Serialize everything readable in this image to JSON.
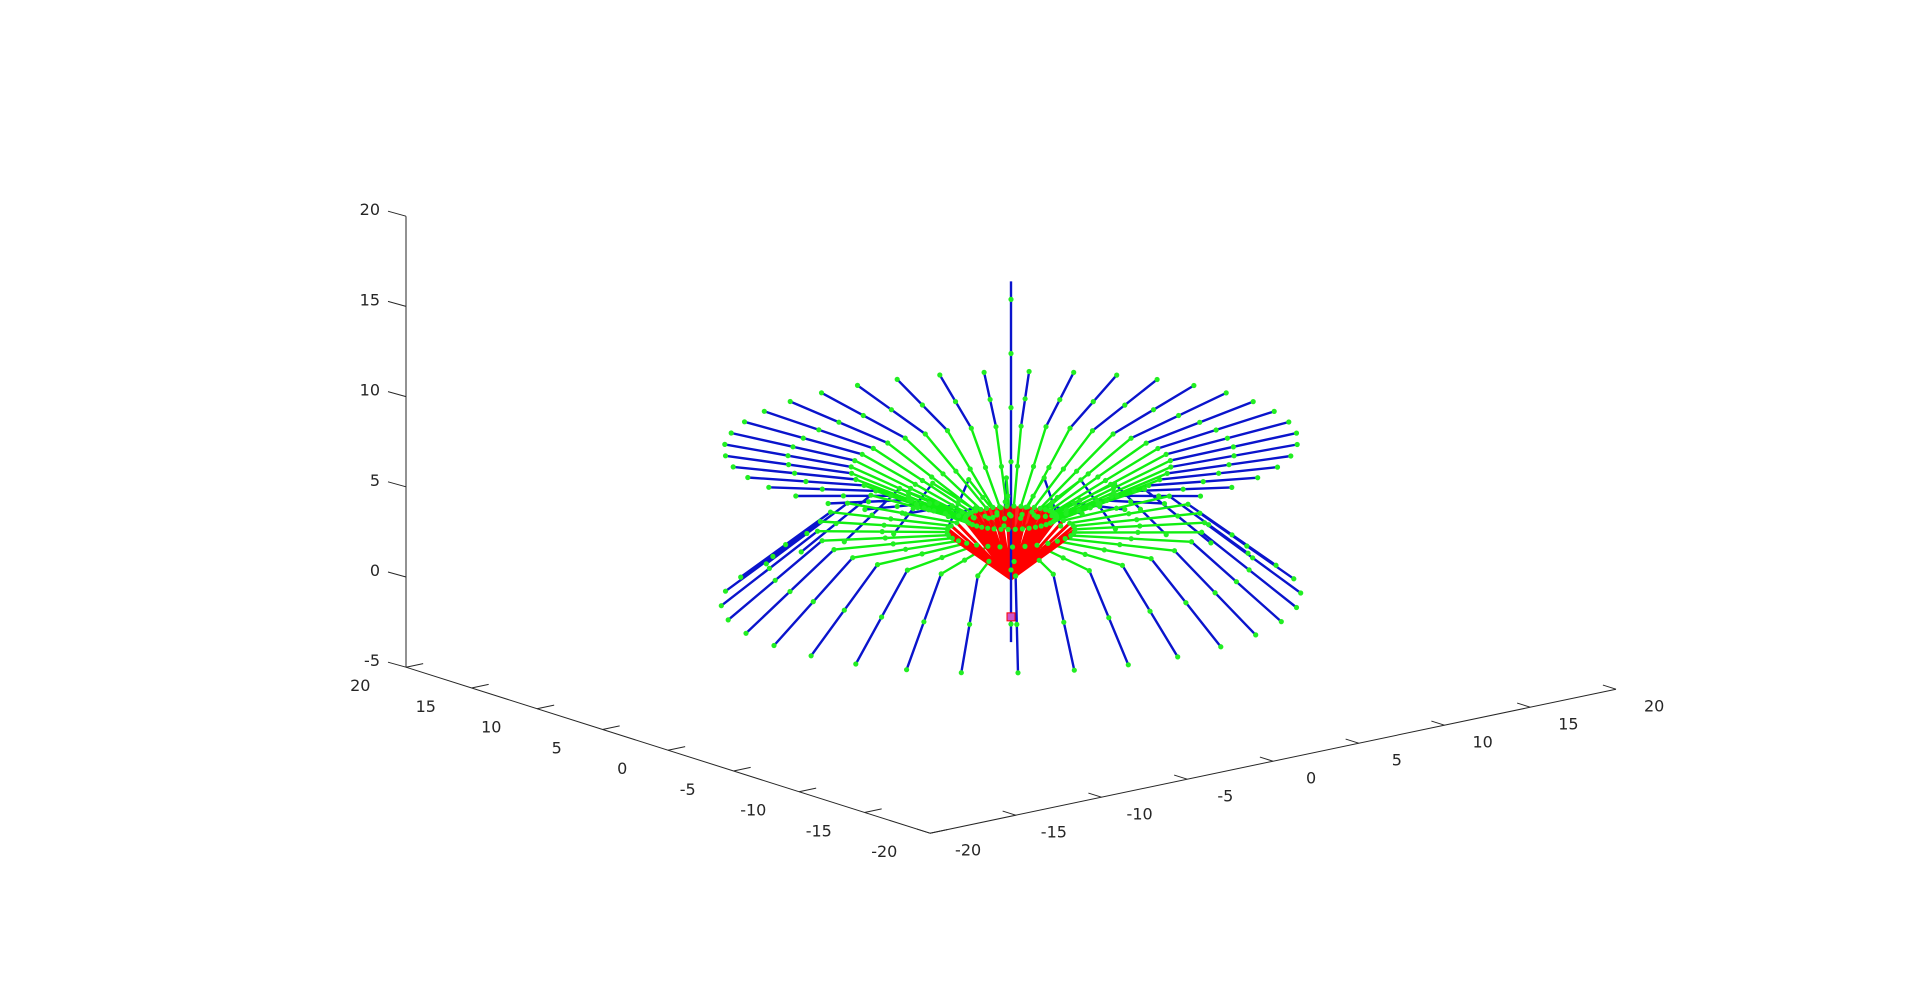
{
  "chart_data": {
    "type": "3d-line",
    "title": "",
    "xlabel": "",
    "ylabel": "",
    "zlabel": "",
    "grid": false,
    "legend": "none",
    "xlim": [
      -20,
      20
    ],
    "ylim": [
      -20,
      20
    ],
    "zlim": [
      -5,
      20
    ],
    "x_ticks": [
      -20,
      -15,
      -10,
      -5,
      0,
      5,
      10,
      15,
      20
    ],
    "y_ticks": [
      -20,
      -15,
      -10,
      -5,
      0,
      5,
      10,
      15,
      20
    ],
    "z_ticks": [
      -5,
      0,
      5,
      10,
      15,
      20
    ],
    "x_tick_labels": [
      "-20",
      "-15",
      "-10",
      "-5",
      "0",
      "5",
      "10",
      "15",
      "20"
    ],
    "y_tick_labels": [
      "-20",
      "-15",
      "-10",
      "-5",
      "0",
      "5",
      "10",
      "15",
      "20"
    ],
    "z_tick_labels": [
      "-5",
      "0",
      "5",
      "10",
      "15",
      "20"
    ],
    "structure": {
      "description_type": "radial branching filaments from a central stem",
      "stem": {
        "x": [
          0,
          0
        ],
        "y": [
          0,
          0
        ],
        "z": [
          -3,
          17
        ]
      },
      "red_segment_length": 4,
      "green_segment_length": 6,
      "blue_segment_length": 6,
      "branch_count_upper": 40,
      "branch_count_lower": 32
    },
    "series": [
      {
        "role": "inner",
        "color": "#ff0000"
      },
      {
        "role": "middle",
        "color": "#00ff00"
      },
      {
        "role": "outer",
        "color": "#0000cc"
      }
    ],
    "colors": {
      "axis": "#262626",
      "red": "#ff0000",
      "green": "#11ee11",
      "blue": "#0a14cc",
      "marker": "#22ee22",
      "stem_marker": "#cc55cc"
    }
  }
}
